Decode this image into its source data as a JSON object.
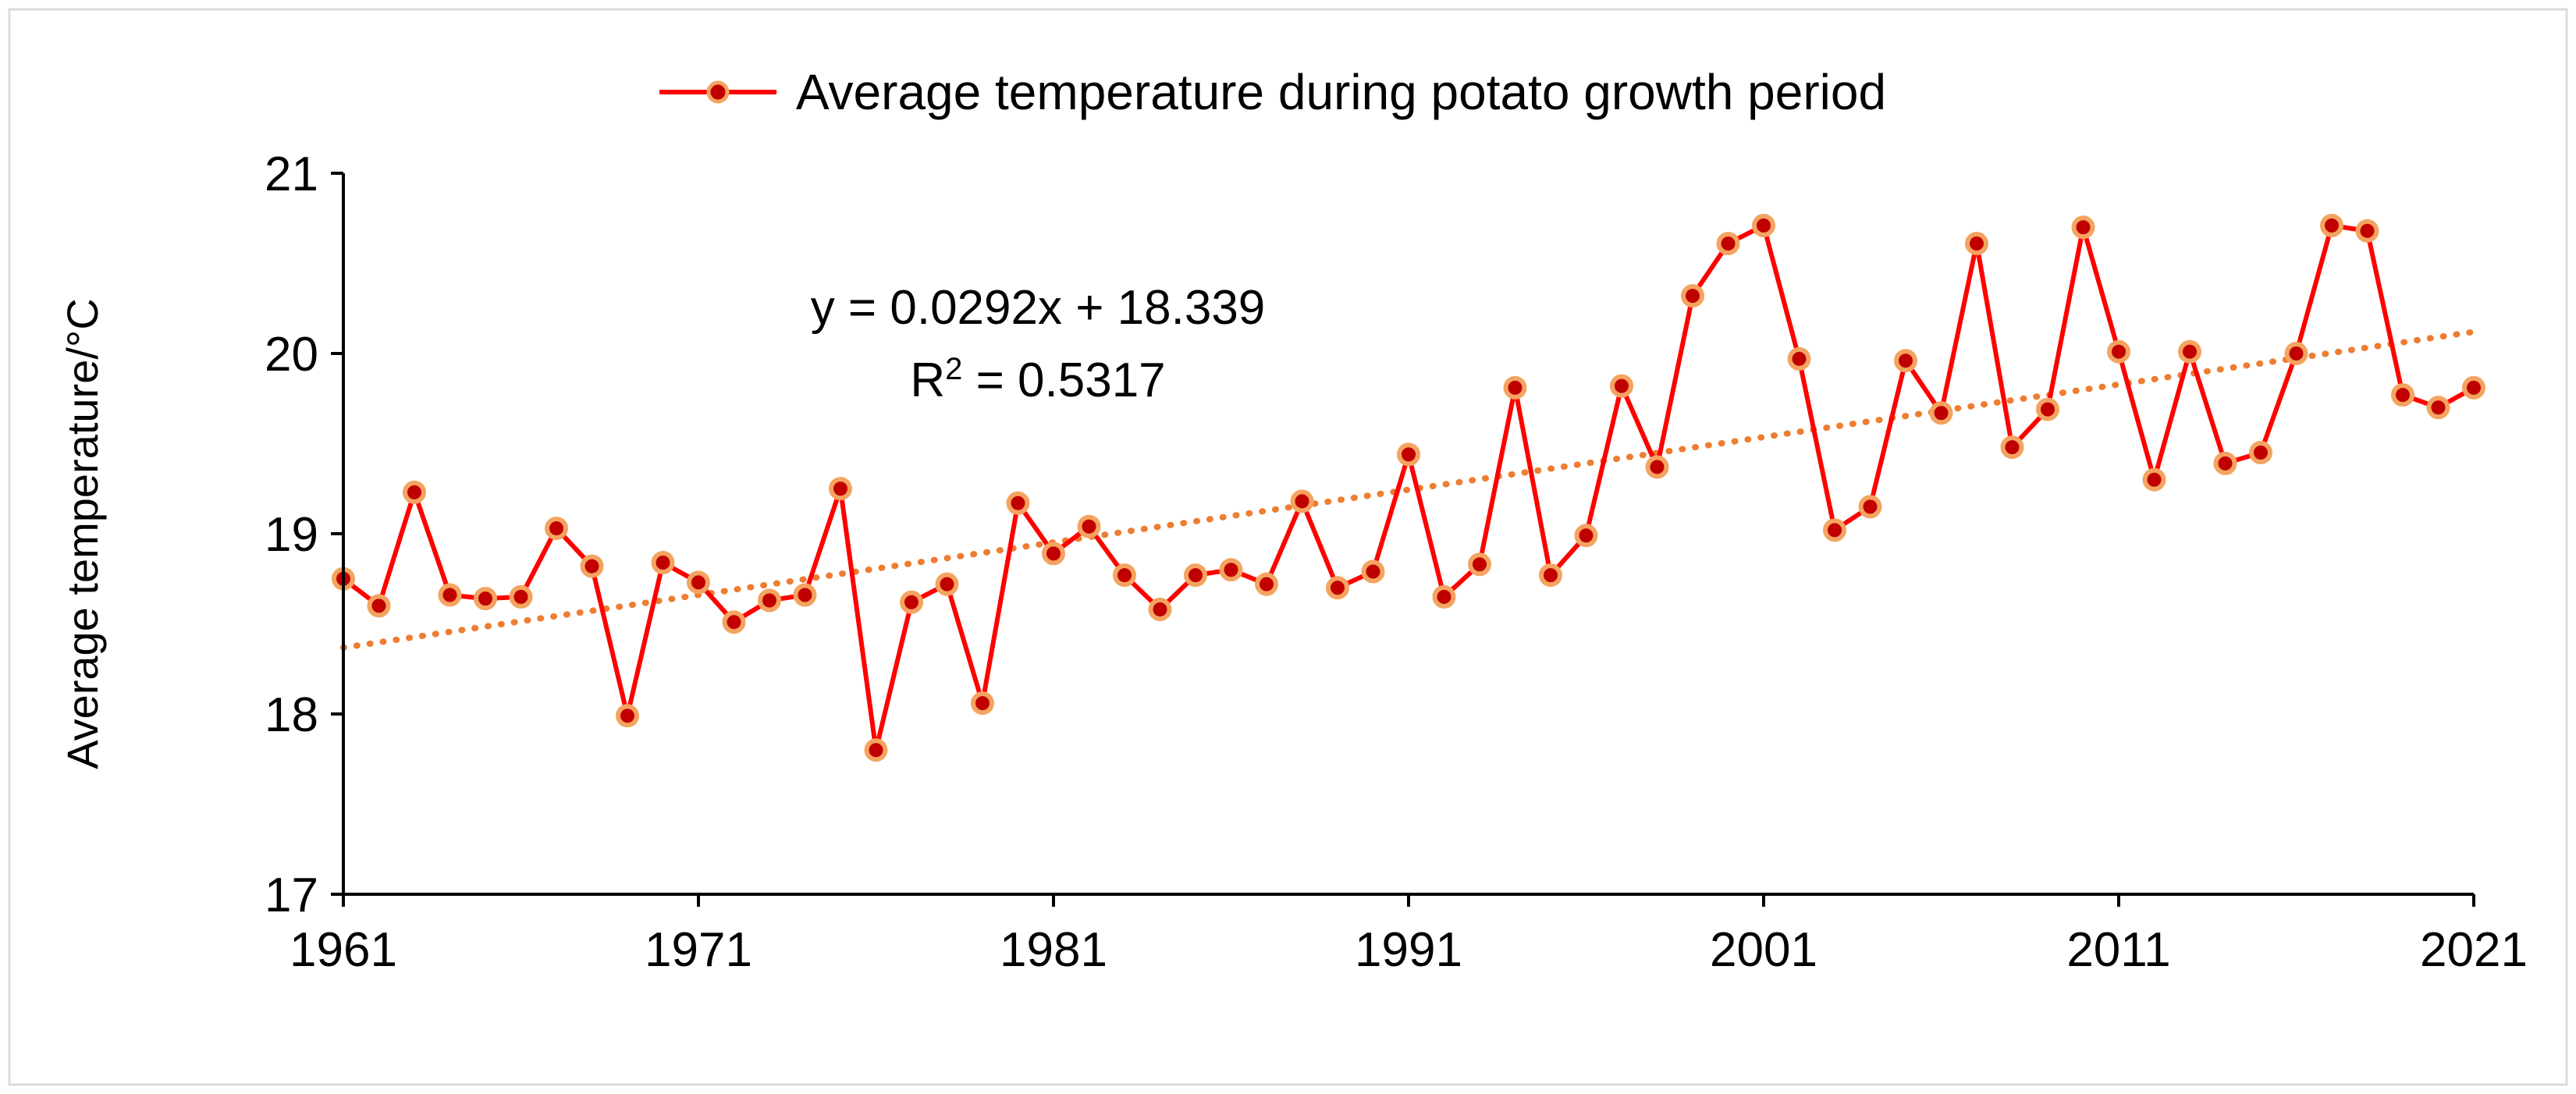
{
  "chart_data": {
    "type": "line",
    "title": "",
    "xlabel": "",
    "ylabel": "Average temperature/°C",
    "xlim": [
      1961,
      2021
    ],
    "ylim": [
      17,
      21
    ],
    "x_ticks": [
      "1961",
      "1971",
      "1981",
      "1991",
      "2001",
      "2011",
      "2021"
    ],
    "y_ticks": [
      "17",
      "18",
      "19",
      "20",
      "21"
    ],
    "legend_position": "top-center",
    "colors": {
      "line": "#ff0000",
      "marker_fill": "#c00000",
      "marker_edge": "#f4a460",
      "trend": "#ed7d31"
    },
    "series": [
      {
        "name": "Average temperature during potato growth period",
        "x": [
          1961,
          1962,
          1963,
          1964,
          1965,
          1966,
          1967,
          1968,
          1969,
          1970,
          1971,
          1972,
          1973,
          1974,
          1975,
          1976,
          1977,
          1978,
          1979,
          1980,
          1981,
          1982,
          1983,
          1984,
          1985,
          1986,
          1987,
          1988,
          1989,
          1990,
          1991,
          1992,
          1993,
          1994,
          1995,
          1996,
          1997,
          1998,
          1999,
          2000,
          2001,
          2002,
          2003,
          2004,
          2005,
          2006,
          2007,
          2008,
          2009,
          2010,
          2011,
          2012,
          2013,
          2014,
          2015,
          2016,
          2017,
          2018,
          2019,
          2020,
          2021
        ],
        "values": [
          18.75,
          18.6,
          19.23,
          18.66,
          18.64,
          18.65,
          19.03,
          18.82,
          17.99,
          18.84,
          18.73,
          18.51,
          18.63,
          18.66,
          19.25,
          17.8,
          18.62,
          18.72,
          18.06,
          19.17,
          18.89,
          19.04,
          18.77,
          18.58,
          18.77,
          18.8,
          18.72,
          19.18,
          18.7,
          18.79,
          19.44,
          18.65,
          18.83,
          19.81,
          18.77,
          18.99,
          19.82,
          19.37,
          20.32,
          20.61,
          20.71,
          19.97,
          19.02,
          19.15,
          19.96,
          19.67,
          20.61,
          19.48,
          19.69,
          20.7,
          20.01,
          19.3,
          20.01,
          19.39,
          19.45,
          20.0,
          20.71,
          20.68,
          19.77,
          19.7,
          19.81
        ]
      }
    ],
    "trendline": {
      "slope": 0.0292,
      "intercept": 18.339,
      "equation": "y = 0.0292x + 18.339",
      "r2_label": "R",
      "r2_sup": "2",
      "r2_value": " = 0.5317"
    }
  }
}
